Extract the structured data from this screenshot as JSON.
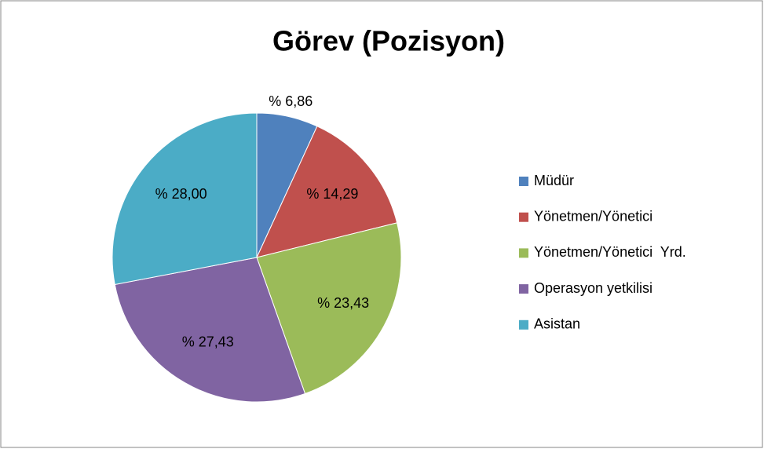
{
  "chart_data": {
    "type": "pie",
    "title": "Görev (Pozisyon)",
    "categories": [
      "Müdür",
      "Yönetmen/Yönetici",
      "Yönetmen/Yönetici  Yrd.",
      "Operasyon yetkilisi",
      "Asistan"
    ],
    "values": [
      6.86,
      14.29,
      23.43,
      27.43,
      28.0
    ],
    "value_labels": [
      "% 6,86",
      "% 14,29",
      "% 23,43",
      "% 27,43",
      "% 28,00"
    ],
    "colors": [
      "#4f81bd",
      "#c0504d",
      "#9bbb59",
      "#8064a2",
      "#4bacc6"
    ],
    "legend": "right"
  }
}
